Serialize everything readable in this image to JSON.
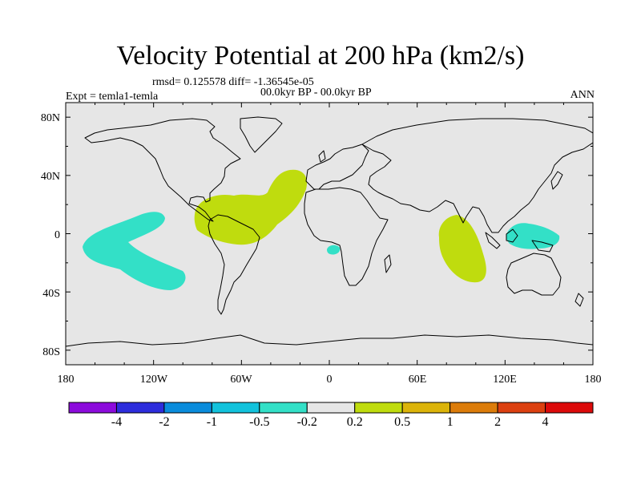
{
  "title": "Velocity Potential at 200 hPa (km2/s)",
  "stats_line": "rmsd= 0.125578 diff= -1.36545e-05",
  "period_line": "00.0kyr BP - 00.0kyr BP",
  "expt_line": "Expt = temla1-temla",
  "season": "ANN",
  "map": {
    "projection": "cylindrical-equidistant",
    "lon_range": [
      -180,
      180
    ],
    "lat_range": [
      -90,
      90
    ],
    "y_axis_labels": [
      "80N",
      "40N",
      "0",
      "40S",
      "80S"
    ],
    "x_axis_labels": [
      "180",
      "120W",
      "60W",
      "0",
      "60E",
      "120E",
      "180"
    ],
    "ocean_fill": "#e6e6e6",
    "coastline_color": "#000000"
  },
  "anomalies": [
    {
      "name": "eastern-pacific-negative",
      "category": "-0.5 to -0.2",
      "color": "#33e0c7"
    },
    {
      "name": "atlantic-positive",
      "category": "0.2 to 0.5",
      "color": "#bfdc0e"
    },
    {
      "name": "indian-ocean-positive",
      "category": "0.2 to 0.5",
      "color": "#bfdc0e"
    },
    {
      "name": "maritime-continent-negative",
      "category": "-0.5 to -0.2",
      "color": "#33e0c7"
    },
    {
      "name": "gulf-of-guinea-negative",
      "category": "-0.5 to -0.2",
      "color": "#33e0c7"
    }
  ],
  "colorbar": {
    "labels": [
      "-4",
      "-2",
      "-1",
      "-0.5",
      "-0.2",
      "0.2",
      "0.5",
      "1",
      "2",
      "4"
    ],
    "colors": [
      "#8c0bdc",
      "#2d2ddc",
      "#0a8cdc",
      "#12c2dc",
      "#33e0c7",
      "#e6e6e6",
      "#bfdc0e",
      "#dcb40a",
      "#dc7c0a",
      "#dc4010",
      "#dc0a0a"
    ]
  }
}
